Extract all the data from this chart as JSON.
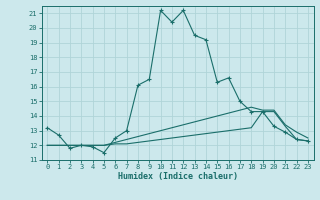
{
  "xlabel": "Humidex (Indice chaleur)",
  "bg_color": "#cce8ec",
  "line_color": "#1a6e6a",
  "grid_color": "#b0d4d8",
  "xlim": [
    -0.5,
    23.5
  ],
  "ylim": [
    11,
    21.5
  ],
  "yticks": [
    11,
    12,
    13,
    14,
    15,
    16,
    17,
    18,
    19,
    20,
    21
  ],
  "xticks": [
    0,
    1,
    2,
    3,
    4,
    5,
    6,
    7,
    8,
    9,
    10,
    11,
    12,
    13,
    14,
    15,
    16,
    17,
    18,
    19,
    20,
    21,
    22,
    23
  ],
  "curve1_x": [
    0,
    1,
    2,
    3,
    4,
    5,
    6,
    7,
    8,
    9,
    10,
    11,
    12,
    13,
    14,
    15,
    16,
    17,
    18,
    19,
    20,
    21,
    22,
    23
  ],
  "curve1_y": [
    13.2,
    12.7,
    11.8,
    12.0,
    11.9,
    11.5,
    12.5,
    13.0,
    16.1,
    16.5,
    21.2,
    20.4,
    21.2,
    19.5,
    19.2,
    16.3,
    16.6,
    15.0,
    14.3,
    14.3,
    13.3,
    12.9,
    12.4,
    12.3
  ],
  "curve2_x": [
    0,
    1,
    2,
    3,
    4,
    5,
    6,
    7,
    8,
    9,
    10,
    11,
    12,
    13,
    14,
    15,
    16,
    17,
    18,
    19,
    20,
    21,
    22,
    23
  ],
  "curve2_y": [
    12.0,
    12.0,
    12.0,
    12.0,
    12.0,
    12.0,
    12.1,
    12.1,
    12.2,
    12.3,
    12.4,
    12.5,
    12.6,
    12.7,
    12.8,
    12.9,
    13.0,
    13.1,
    13.2,
    14.3,
    14.3,
    13.3,
    12.4,
    12.3
  ],
  "curve3_x": [
    0,
    1,
    2,
    3,
    4,
    5,
    6,
    7,
    8,
    9,
    10,
    11,
    12,
    13,
    14,
    15,
    16,
    17,
    18,
    19,
    20,
    21,
    22,
    23
  ],
  "curve3_y": [
    12.0,
    12.0,
    12.0,
    12.0,
    12.0,
    12.0,
    12.2,
    12.4,
    12.6,
    12.8,
    13.0,
    13.2,
    13.4,
    13.6,
    13.8,
    14.0,
    14.2,
    14.4,
    14.6,
    14.4,
    14.4,
    13.4,
    12.9,
    12.5
  ]
}
